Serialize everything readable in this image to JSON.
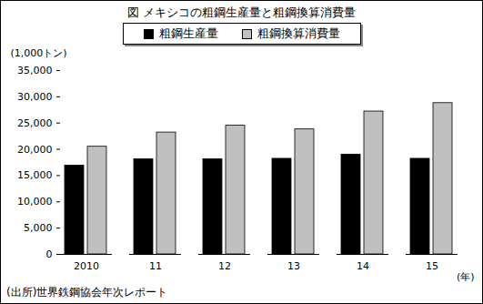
{
  "chart_data": {
    "type": "bar",
    "title": "図 メキシコの粗鋼生産量と粗鋼換算消費量",
    "y_label": "(1,000トン)",
    "x_label": "(年)",
    "caption": "(出所)世界鉄鋼協会年次レポート",
    "categories": [
      "2010",
      "11",
      "12",
      "13",
      "14",
      "15"
    ],
    "series": [
      {
        "name": "粗鋼生産量",
        "color": "#000000",
        "values": [
          16900,
          18100,
          18100,
          18200,
          19000,
          18200
        ]
      },
      {
        "name": "粗鋼換算消費量",
        "color": "#c0c0c0",
        "values": [
          20500,
          23200,
          24500,
          23800,
          27200,
          28800
        ]
      }
    ],
    "ylim": [
      0,
      35000
    ],
    "yticks": [
      0,
      {
        "value": 5000,
        "label": "5,000"
      },
      {
        "value": 10000,
        "label": "10,000"
      },
      {
        "value": 15000,
        "label": "15,000"
      },
      {
        "value": 20000,
        "label": "20,000"
      },
      {
        "value": 25000,
        "label": "25,000"
      },
      {
        "value": 30000,
        "label": "30,000"
      },
      {
        "value": 35000,
        "label": "35,000"
      }
    ],
    "grid": false,
    "legend": "top"
  }
}
